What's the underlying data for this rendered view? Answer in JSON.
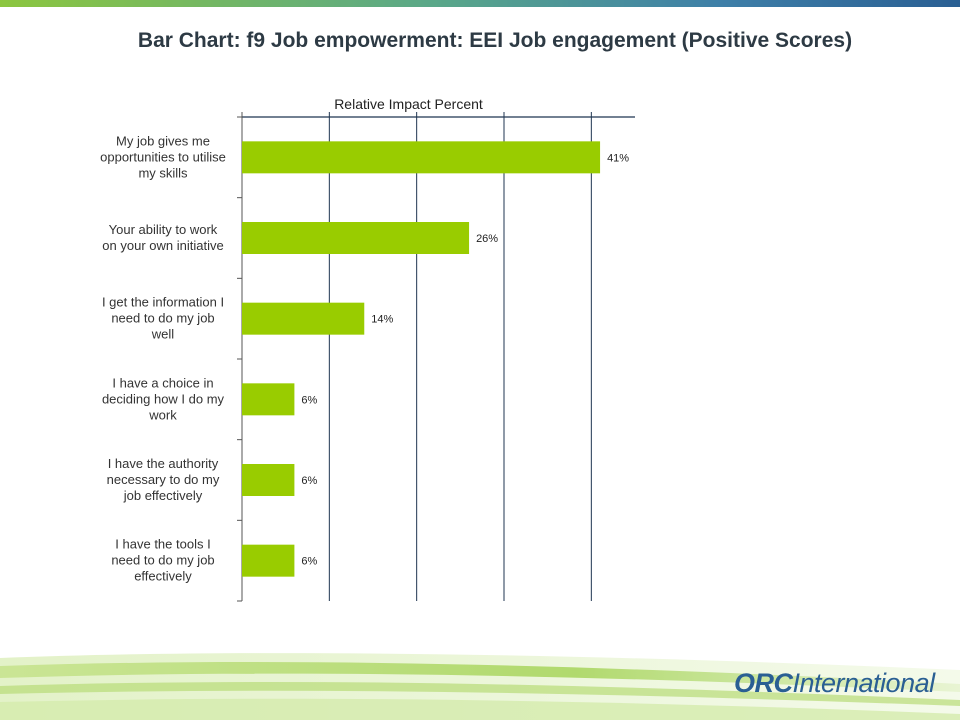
{
  "chart_data": {
    "type": "bar",
    "orientation": "horizontal",
    "title": "Bar Chart: f9 Job empowerment: EEI Job engagement (Positive Scores)",
    "xlabel": "Relative Impact Percent",
    "categories": [
      [
        "My job gives me",
        "opportunities to utilise",
        "my skills"
      ],
      [
        "Your ability to work",
        "on your own initiative"
      ],
      [
        "I get the information I",
        "need to do my job",
        "well"
      ],
      [
        "I have a choice in",
        "deciding how I do my",
        "work"
      ],
      [
        "I have the authority",
        "necessary  to do my",
        "job effectively"
      ],
      [
        "I have the tools I",
        "need to do my job",
        "effectively"
      ]
    ],
    "values": [
      41,
      26,
      14,
      6,
      6,
      6
    ],
    "data_labels": [
      "41%",
      "26%",
      "14%",
      "6%",
      "6%",
      "6%"
    ],
    "xlim": [
      0,
      45
    ],
    "grid": true,
    "bar_color": "#99cc00"
  },
  "branding": {
    "logo_bold": "ORC",
    "logo_rest": "International",
    "accent": "#2a5f93"
  }
}
